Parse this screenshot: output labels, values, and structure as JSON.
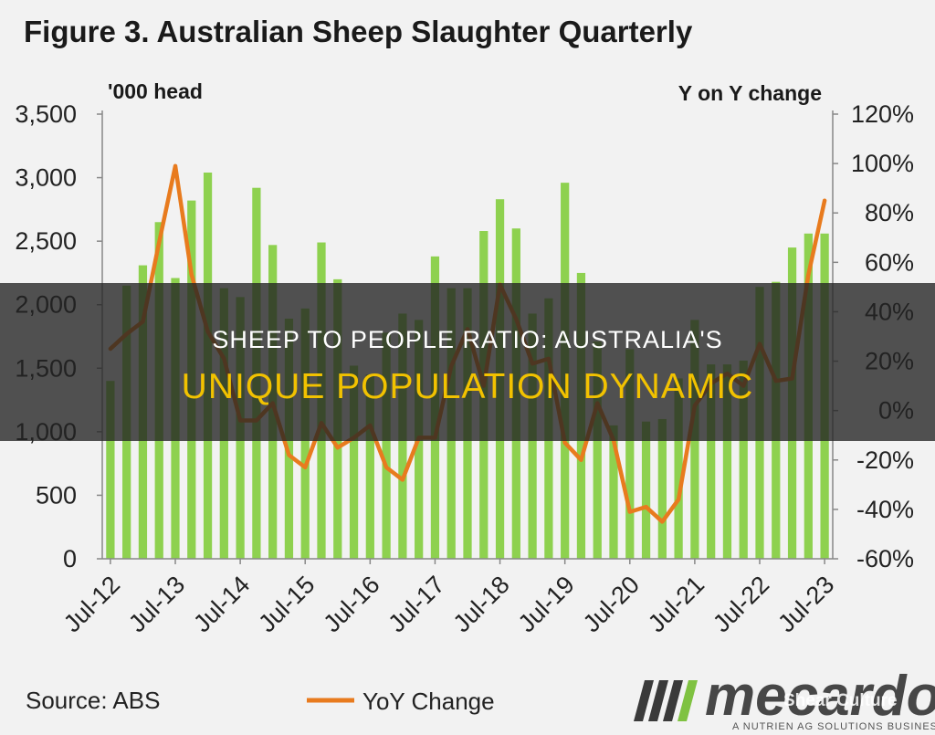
{
  "chart_data": {
    "type": "bar",
    "title": "Figure 3. Australian Sheep Slaughter Quarterly",
    "y_left_label": "'000 head",
    "y_right_label": "Y on Y change",
    "ylim_left": [
      0,
      3500
    ],
    "ylim_right": [
      -60,
      120
    ],
    "y_left_ticks": [
      "0",
      "500",
      "1,000",
      "1,500",
      "2,000",
      "2,500",
      "3,000",
      "3,500"
    ],
    "y_right_ticks": [
      "-60%",
      "-40%",
      "-20%",
      "0%",
      "20%",
      "40%",
      "60%",
      "80%",
      "100%",
      "120%"
    ],
    "x_tick_labels": [
      "Jul-12",
      "Jul-13",
      "Jul-14",
      "Jul-15",
      "Jul-16",
      "Jul-17",
      "Jul-18",
      "Jul-19",
      "Jul-20",
      "Jul-21",
      "Jul-22",
      "Jul-23"
    ],
    "categories": [
      "Jul-12",
      "Oct-12",
      "Jan-13",
      "Apr-13",
      "Jul-13",
      "Oct-13",
      "Jan-14",
      "Apr-14",
      "Jul-14",
      "Oct-14",
      "Jan-15",
      "Apr-15",
      "Jul-15",
      "Oct-15",
      "Jan-16",
      "Apr-16",
      "Jul-16",
      "Oct-16",
      "Jan-17",
      "Apr-17",
      "Jul-17",
      "Oct-17",
      "Jan-18",
      "Apr-18",
      "Jul-18",
      "Oct-18",
      "Jan-19",
      "Apr-19",
      "Jul-19",
      "Oct-19",
      "Jan-20",
      "Apr-20",
      "Jul-20",
      "Oct-20",
      "Jan-21",
      "Apr-21",
      "Jul-21",
      "Oct-21",
      "Jan-22",
      "Apr-22",
      "Jul-22",
      "Oct-22",
      "Jan-23",
      "Apr-23",
      "Jul-23"
    ],
    "series": [
      {
        "name": "",
        "kind": "bar",
        "axis": "left",
        "color": "#8ed14f",
        "values": [
          1400,
          2150,
          2310,
          2650,
          2210,
          2820,
          3040,
          2130,
          2060,
          2920,
          2470,
          1890,
          1970,
          2490,
          2200,
          1520,
          1450,
          1780,
          1930,
          1880,
          2380,
          2130,
          2130,
          2580,
          2830,
          2600,
          1930,
          2050,
          2960,
          2250,
          1710,
          1050,
          1650,
          1080,
          1100,
          1420,
          1880,
          1530,
          1530,
          1560,
          2140,
          2180,
          2450,
          2560,
          2560
        ]
      },
      {
        "name": "YoY Change",
        "kind": "line",
        "axis": "right",
        "color": "#e87b1e",
        "values": [
          25,
          31,
          36,
          68,
          99,
          55,
          32,
          21,
          -4,
          -4,
          3,
          -18,
          -23,
          -5,
          -15,
          -11,
          -6,
          -23,
          -28,
          -11,
          -11,
          18,
          33,
          10,
          51,
          37,
          19,
          21,
          -13,
          -20,
          3,
          -12,
          -41,
          -39,
          -45,
          -36,
          2,
          11,
          15,
          10,
          27,
          12,
          13,
          55,
          85
        ]
      }
    ],
    "grid": false,
    "legend_position": "bottom-left"
  },
  "footer": {
    "source_text": "Source: ABS",
    "legend_label": "YoY Change"
  },
  "banner": {
    "line1": "SHEEP TO PEOPLE RATIO: AUSTRALIA'S",
    "line2": "UNIQUE POPULATION DYNAMIC"
  },
  "logo": {
    "name": "mecardo",
    "tagline": "A NUTRIEN AG SOLUTIONS BUSINESS",
    "watermark": "Shear Culture"
  },
  "colors": {
    "background": "#f2f2f2",
    "bars": "#8ed14f",
    "line": "#e87b1e",
    "banner_text_highlight": "#f2c200"
  }
}
